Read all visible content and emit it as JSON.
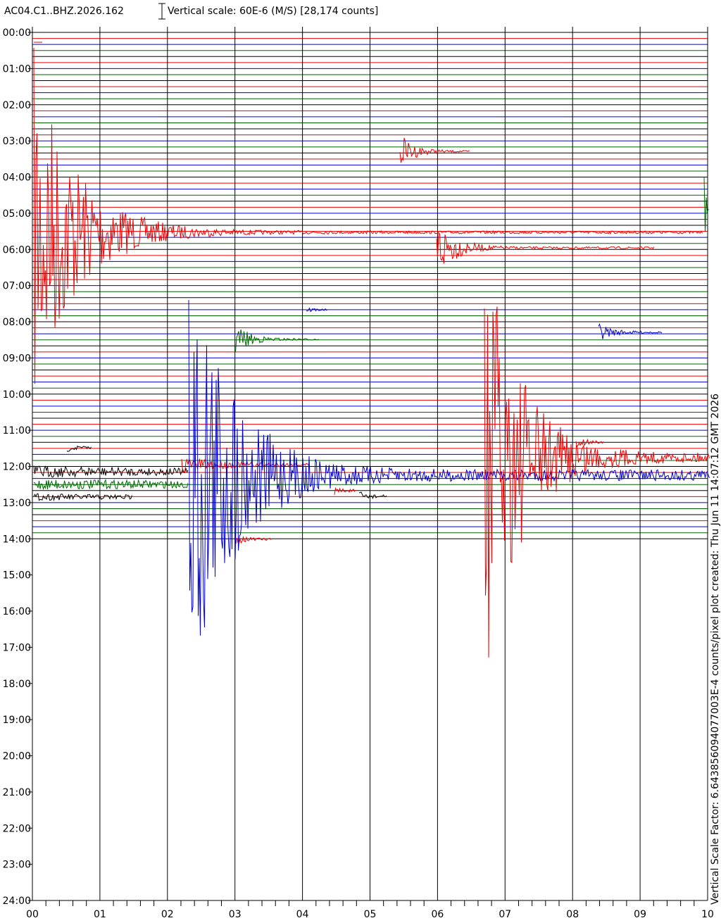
{
  "header": {
    "station": "AC04.C1..BHZ.2026.162",
    "scale": "Vertical scale: 60E-6 (M/S) [28,174 counts]"
  },
  "side_note": "Vertical Scale Factor: 6.643856094077003E-4 counts/pixel plot created: Thu Jun 11 14:07:12 GMT 2026",
  "time_labels": [
    "00:00",
    "01:00",
    "02:00",
    "03:00",
    "04:00",
    "05:00",
    "06:00",
    "07:00",
    "08:00",
    "09:00",
    "10:00",
    "11:00",
    "12:00",
    "13:00",
    "14:00",
    "15:00",
    "16:00",
    "17:00",
    "18:00",
    "19:00",
    "20:00",
    "21:00",
    "22:00",
    "23:00",
    "24:00"
  ],
  "minute_labels": [
    "00",
    "01",
    "02",
    "03",
    "04",
    "05",
    "06",
    "07",
    "08",
    "09",
    "10"
  ]
}
